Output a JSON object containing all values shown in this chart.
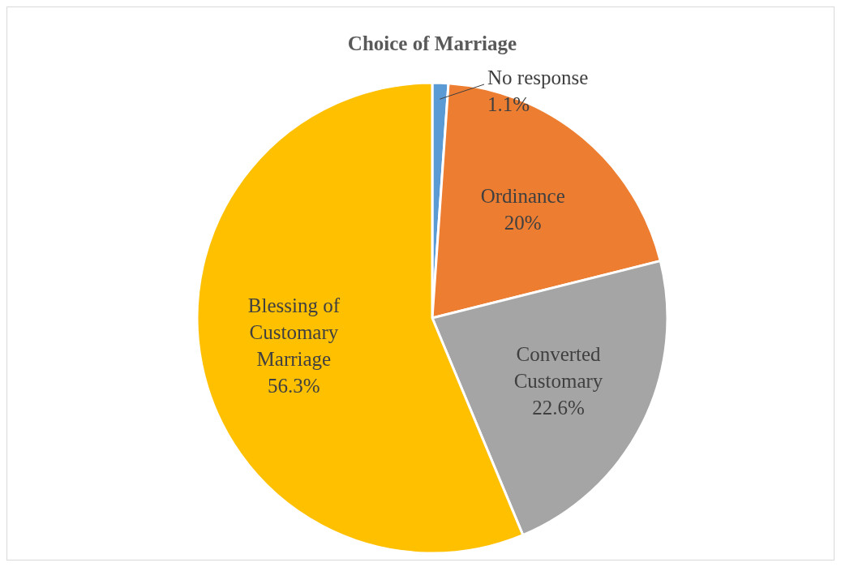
{
  "chart_data": {
    "type": "pie",
    "title": "Choice of Marriage",
    "categories": [
      "No response",
      "Ordinance",
      "Converted Customary",
      "Blessing of Customary Marriage"
    ],
    "values": [
      1.1,
      20,
      22.6,
      56.3
    ],
    "value_labels": [
      "1.1%",
      "20%",
      "22.6%",
      "56.3%"
    ],
    "colors": [
      "#5b9bd5",
      "#ed7d31",
      "#a5a5a5",
      "#ffc000"
    ]
  }
}
